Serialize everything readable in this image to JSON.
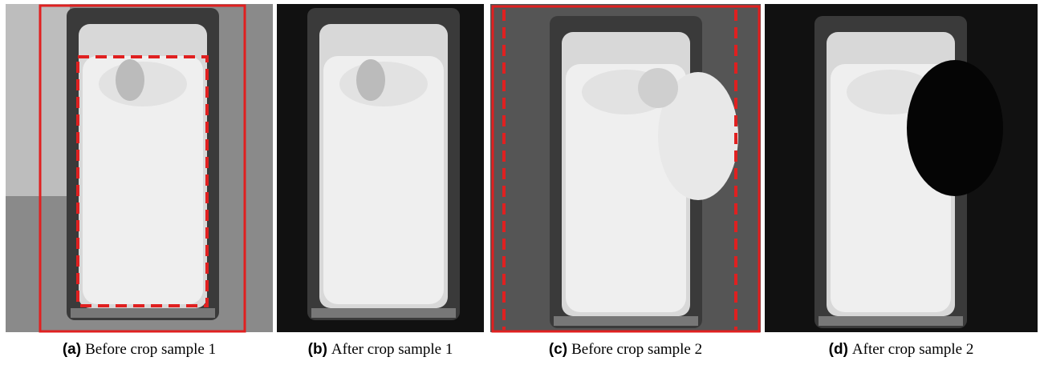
{
  "panels": [
    {
      "label": "(a)",
      "caption": "Before crop sample 1"
    },
    {
      "label": "(b)",
      "caption": "After crop sample 1"
    },
    {
      "label": "(c)",
      "caption": "Before crop sample 2"
    },
    {
      "label": "(d)",
      "caption": "After crop sample 2"
    }
  ]
}
